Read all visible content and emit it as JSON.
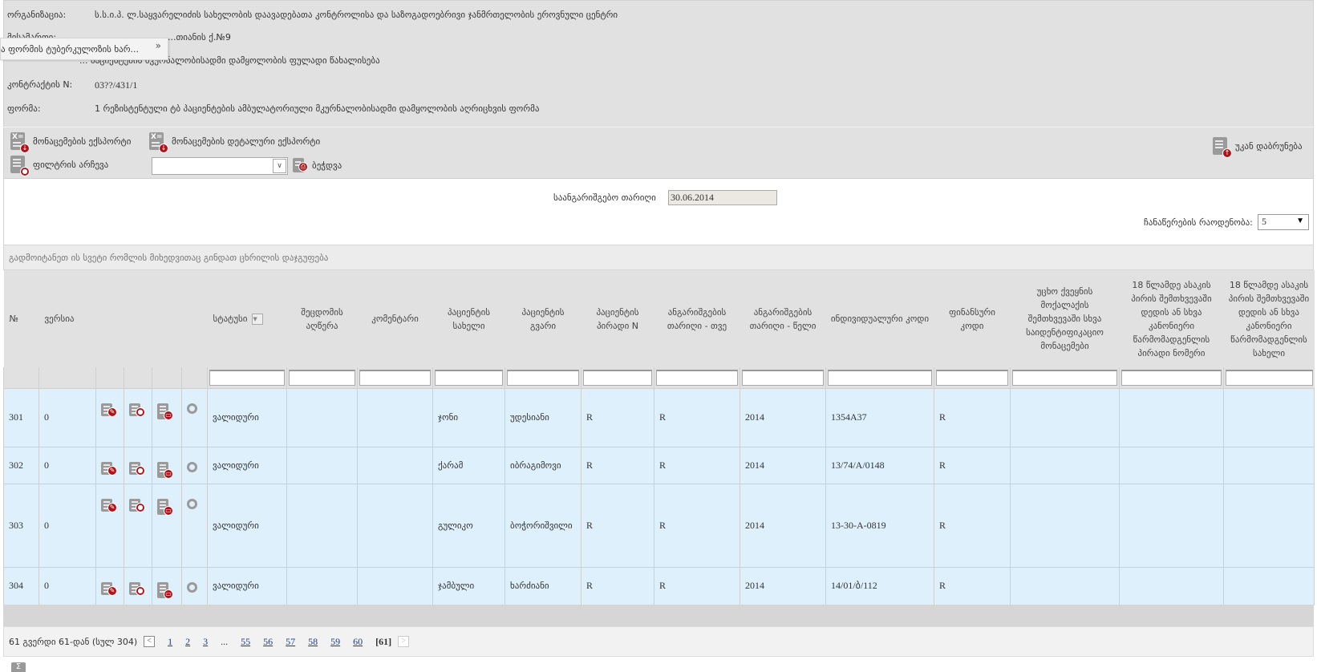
{
  "info": {
    "rows": [
      {
        "label": "ორგანიზაცია:",
        "value": "ს.ს.ი.პ. ლ.საყვარელიძის სახელობის დაავადებათა კონტროლისა და საზოგადოებრივი ჯანმრთელობის ეროვნული ცენტრი"
      },
      {
        "label": "მისამართი:",
        "value": "...თიანის ქ.№9"
      },
      {
        "label": "",
        "value": "... პაციენტების მკურნალობისადმი დამყოლობის ფულადი წახალისება"
      },
      {
        "label": "კონტრაქტის N:",
        "value": "03??/431/1"
      },
      {
        "label": "ფორმა:",
        "value": "1 რეზისტენტული ტბ პაციენტების ამბულატორიული მკურნალობისადმი დამყოლობის აღრიცხვის ფორმა"
      }
    ]
  },
  "tooltip": {
    "text": "ა ფორმის ტუბერკულოზის ხარ...",
    "expand_glyph": "»"
  },
  "toolbar": {
    "export": "მონაცემების ექსპორტი",
    "detailed_export": "მონაცემების დეტალური ექსპორტი",
    "filter_select": "ფილტრის არჩევა",
    "filter_value": "",
    "print": "ბეჭდვა",
    "back": "უკან დაბრუნება"
  },
  "report": {
    "date_label": "საანგარიშგებო თარიღი",
    "date_value": "30.06.2014",
    "count_label": "ჩანაწერების რაოდენობა:",
    "count_value": "5"
  },
  "group_hint": "გადმოიტანეთ ის სვეტი რომლის მიხედვითაც გინდათ ცხრილის დაჯგუფება",
  "columns": [
    "№",
    "ვერსია",
    "",
    "",
    "",
    "",
    "სტატუსი",
    "შეცდომის აღწერა",
    "კომენტარი",
    "პაციენტის სახელი",
    "პაციენტის გვარი",
    "პაციენტის პირადი N",
    "ანგარიშგების თარიღი - თვე",
    "ანგარიშგების თარიღი - წელი",
    "ინდივიდუალური კოდი",
    "ფინანსური კოდი",
    "უცხო ქვეყნის მოქალაქის შემთხვევაში სხვა საიდენტიფიკაციო მონაცემები",
    "18 წლამდე ასაკის პირის შემთხვევაში დედის ან სხვა კანონიერი წარმომადგენლის პირადი ნომერი",
    "18 წლამდე ასაკის პირის შემთხვევაში დედის ან სხვა კანონიერი წარმომადგენლის სახელი"
  ],
  "rows": [
    {
      "no": "301",
      "version": "0",
      "status": "ვალიდური",
      "error": "",
      "comment": "",
      "first_name": "ჯონი",
      "last_name": "უდესიანი",
      "personal_no": "R",
      "month": "R",
      "year": "2014",
      "ind_code": "1354A37",
      "fin_code": "R",
      "foreign_id": "",
      "guardian_no": "",
      "guardian_name": ""
    },
    {
      "no": "302",
      "version": "0",
      "status": "ვალიდური",
      "error": "",
      "comment": "",
      "first_name": "ქარამ",
      "last_name": "იბრაგიმოვი",
      "personal_no": "R",
      "month": "R",
      "year": "2014",
      "ind_code": "13/74/A/0148",
      "fin_code": "R",
      "foreign_id": "",
      "guardian_no": "",
      "guardian_name": ""
    },
    {
      "no": "303",
      "version": "0",
      "status": "ვალიდური",
      "error": "",
      "comment": "",
      "first_name": "გულიკო",
      "last_name": "ბოჭორიშვილი",
      "personal_no": "R",
      "month": "R",
      "year": "2014",
      "ind_code": "13-30-A-0819",
      "fin_code": "R",
      "foreign_id": "",
      "guardian_no": "",
      "guardian_name": ""
    },
    {
      "no": "304",
      "version": "0",
      "status": "ვალიდური",
      "error": "",
      "comment": "",
      "first_name": "ჯამბული",
      "last_name": "ხარძიანი",
      "personal_no": "R",
      "month": "R",
      "year": "2014",
      "ind_code": "14/01/ბ/112",
      "fin_code": "R",
      "foreign_id": "",
      "guardian_no": "",
      "guardian_name": ""
    }
  ],
  "pager": {
    "info": "61 გვერდი 61-დან (სულ 304)",
    "pages": [
      "1",
      "2",
      "3",
      "55",
      "56",
      "57",
      "58",
      "59",
      "60"
    ],
    "ellipsis": "...",
    "current": "[61]",
    "prev": "<",
    "next": ">"
  },
  "sigma": "Σ",
  "colors": {
    "row_bg": "#def0fb",
    "panel_bg": "#e1e1e1",
    "badge_red": "#b0121a",
    "link": "#1a3d8f"
  }
}
